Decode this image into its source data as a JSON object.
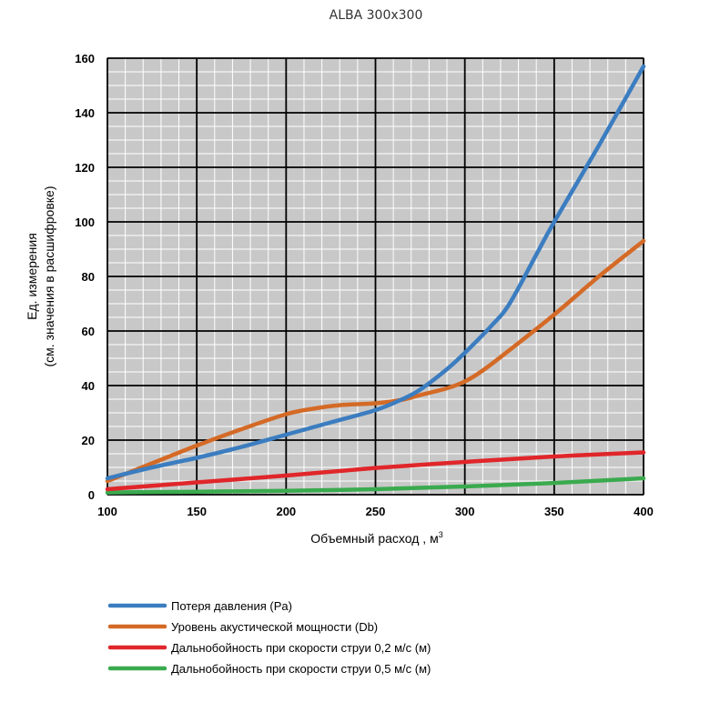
{
  "chart_data": {
    "type": "line",
    "title": "ALBA 300x300",
    "xlabel": "Объемный расход , м",
    "xlabel_superscript": "3",
    "ylabel_line1": "Ед. измерения",
    "ylabel_line2": "(см. значения в расшифровке)",
    "xlim": [
      100,
      400
    ],
    "ylim": [
      0,
      160
    ],
    "x_ticks": [
      100,
      150,
      200,
      250,
      300,
      350,
      400
    ],
    "y_ticks": [
      0,
      20,
      40,
      60,
      80,
      100,
      120,
      140,
      160
    ],
    "grid": true,
    "legend_position": "bottom",
    "series": [
      {
        "name": "Потеря давления (Pa)",
        "color": "#3b7dc0",
        "x": [
          100,
          125,
          150,
          175,
          200,
          225,
          250,
          265,
          275,
          290,
          300,
          315,
          325,
          340,
          350,
          375,
          400
        ],
        "y": [
          6,
          10,
          13.5,
          17.5,
          22,
          26.5,
          31,
          35,
          38.5,
          46,
          52,
          62,
          70,
          88,
          100,
          128,
          157
        ]
      },
      {
        "name": "Уровень акустической мощности (Db)",
        "color": "#d46a26",
        "x": [
          100,
          125,
          150,
          175,
          200,
          215,
          230,
          250,
          265,
          275,
          290,
          300,
          310,
          325,
          350,
          375,
          400
        ],
        "y": [
          5,
          11.5,
          18,
          24,
          29.5,
          31.5,
          32.8,
          33.5,
          34.8,
          36.5,
          39,
          41.5,
          45.5,
          53,
          66,
          80,
          93
        ]
      },
      {
        "name": "Дальнобойность при скорости струи 0,2 м/с (м)",
        "color": "#e0262a",
        "x": [
          100,
          150,
          200,
          250,
          300,
          350,
          400
        ],
        "y": [
          2,
          4.5,
          7,
          9.8,
          12,
          14,
          15.5
        ]
      },
      {
        "name": "Дальнобойность при скорости струи 0,5 м/с (м)",
        "color": "#3aaa4e",
        "x": [
          100,
          150,
          200,
          250,
          300,
          350,
          400
        ],
        "y": [
          0.8,
          1.1,
          1.4,
          2,
          3,
          4.3,
          6
        ]
      }
    ]
  }
}
